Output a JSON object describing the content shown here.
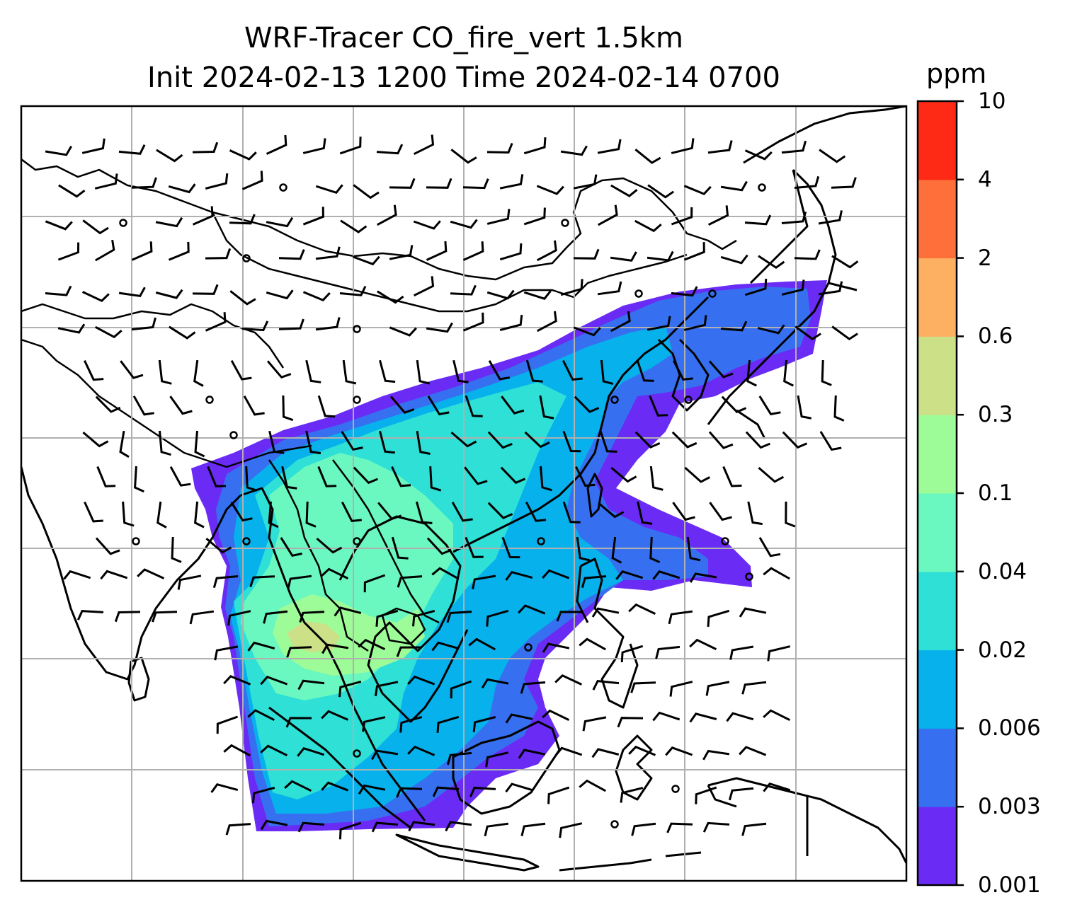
{
  "title": {
    "line1": "WRF-Tracer CO_fire_vert 1.5km",
    "line2": "Init 2024-02-13 1200 Time 2024-02-14 0700"
  },
  "colorbar": {
    "unit": "ppm",
    "ticks": [
      "0.001",
      "0.003",
      "0.006",
      "0.02",
      "0.04",
      "0.1",
      "0.3",
      "0.6",
      "2",
      "4",
      "10"
    ],
    "colors": [
      "#6a2bf4",
      "#3670f0",
      "#06b1ec",
      "#2ee0d6",
      "#6af8c0",
      "#9efc98",
      "#cce088",
      "#fdb062",
      "#ff6f3a",
      "#ff2a16"
    ]
  },
  "map": {
    "gridlines": true,
    "field": "CO_fire_vert",
    "level": "1.5km",
    "init": "2024-02-13 1200",
    "valid": "2024-02-14 0700"
  }
}
